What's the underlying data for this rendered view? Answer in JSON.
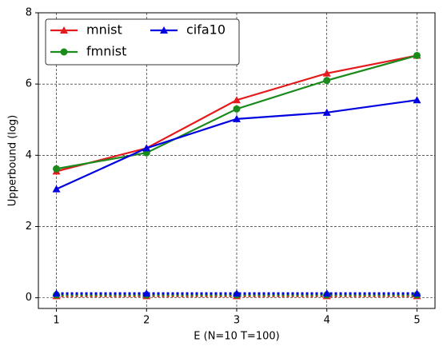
{
  "chart_data": {
    "type": "line",
    "x": [
      1,
      2,
      3,
      4,
      5
    ],
    "xlim": [
      0.8,
      5.2
    ],
    "xticks": [
      1,
      2,
      3,
      4,
      5
    ],
    "ylim": [
      -0.3,
      8
    ],
    "yticks": [
      0,
      2,
      4,
      6,
      8
    ],
    "xlabel": "E (N=10 T=100)",
    "ylabel": "Upperbound (log)",
    "grid": true,
    "legend": "upper left",
    "series": [
      {
        "name": "mnist",
        "color": "#e41a1c",
        "marker": "triangle",
        "linestyle": "solid",
        "values": [
          3.55,
          4.2,
          5.55,
          6.3,
          6.8
        ]
      },
      {
        "name": "fmnist",
        "color": "#1a8a1a",
        "marker": "circle",
        "linestyle": "solid",
        "values": [
          3.62,
          4.07,
          5.3,
          6.1,
          6.8
        ]
      },
      {
        "name": "cifa10",
        "color": "#0000e0",
        "marker": "triangle",
        "linestyle": "solid",
        "values": [
          3.05,
          4.2,
          5.02,
          5.2,
          5.55
        ]
      },
      {
        "color": "#e41a1c",
        "marker": "triangle",
        "linestyle": "dotted",
        "values": [
          0.05,
          0.05,
          0.05,
          0.05,
          0.05
        ]
      },
      {
        "color": "#1a8a1a",
        "marker": "circle",
        "linestyle": "dotted",
        "values": [
          0.08,
          0.08,
          0.08,
          0.08,
          0.08
        ]
      },
      {
        "color": "#0000e0",
        "marker": "triangle",
        "linestyle": "dotted",
        "values": [
          0.12,
          0.12,
          0.12,
          0.12,
          0.12
        ]
      }
    ]
  }
}
